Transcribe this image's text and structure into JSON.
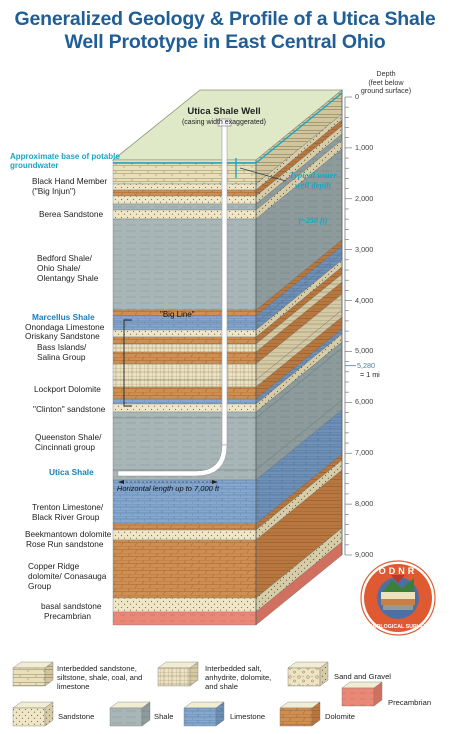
{
  "title": "Generalized Geology & Profile of a Utica Shale Well Prototype in East Central Ohio",
  "well": {
    "name": "Utica Shale Well",
    "note": "(casing width exaggerated)",
    "water_label": "Typical water well depth",
    "water_value": "(~250 ft)",
    "lateral_label": "Horizontal length up to 7,000 ft",
    "big_line": "\"Big Line\""
  },
  "depth_axis": {
    "header": "Depth\n(feet below\nground surface)",
    "ticks": [
      "0",
      "1,000",
      "2,000",
      "3,000",
      "4,000",
      "5,000",
      "6,000",
      "7,000",
      "8,000",
      "9,000"
    ],
    "mile_value": "5,280",
    "mile_label": "= 1 mi"
  },
  "formations": {
    "groundwater": "Approximate base of potable groundwater",
    "black_hand": "Black Hand Member (\"Big Injun\")",
    "berea": "Berea Sandstone",
    "bedford": "Bedford Shale/ Ohio Shale/ Olentangy Shale",
    "marcellus": "Marcellus Shale",
    "onondaga": "Onondaga Limestone",
    "oriskany": "Oriskany Sandstone",
    "bass": "Bass Islands/ Salina Group",
    "lockport": "Lockport Dolomite",
    "clinton": "\"Clinton\" sandstone",
    "queenston": "Queenston Shale/ Cincinnati group",
    "utica": "Utica Shale",
    "trenton": "Trenton Limestone/ Black River Group",
    "beekmantown": "Beekmantown dolomite",
    "rose_run": "Rose Run sandstone",
    "copper_ridge": "Copper Ridge dolomite/ Conasauga Group",
    "basal": "basal sandstone",
    "precambrian": "Precambrian"
  },
  "logo": {
    "top_text": "ODNR",
    "bottom_text": "GEOLOGICAL SURVEY"
  },
  "legend": [
    {
      "key": "interbedded_sandstone",
      "label": "Interbedded sandstone, siltstone, shale, coal, and limestone"
    },
    {
      "key": "interbedded_salt",
      "label": "Interbedded salt, anhydrite, dolomite, and shale"
    },
    {
      "key": "sand_gravel",
      "label": "Sand and Gravel"
    },
    {
      "key": "precambrian",
      "label": "Precambrian"
    },
    {
      "key": "sandstone",
      "label": "Sandstone"
    },
    {
      "key": "shale",
      "label": "Shale"
    },
    {
      "key": "limestone",
      "label": "Limestone"
    },
    {
      "key": "dolomite",
      "label": "Dolomite"
    }
  ],
  "colors": {
    "title": "#1f5e96",
    "shale": "#a9b6b7",
    "limestone": "#86a8cf",
    "dolomite": "#cf8f52",
    "sandstone": "#efe6c6",
    "salt": "#ece2c0",
    "precambrian": "#ea8878",
    "groundwater": "#18a6c4"
  }
}
